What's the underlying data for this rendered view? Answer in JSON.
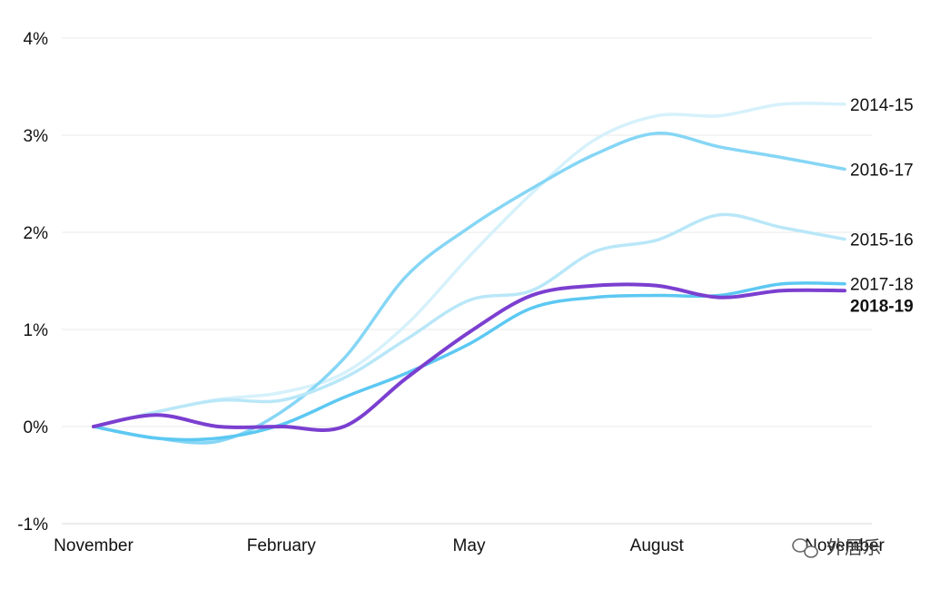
{
  "chart_data": {
    "type": "line",
    "ylim": [
      -1,
      4
    ],
    "y_ticks": [
      {
        "value": 4,
        "label": "4%"
      },
      {
        "value": 3,
        "label": "3%"
      },
      {
        "value": 2,
        "label": "2%"
      },
      {
        "value": 1,
        "label": "1%"
      },
      {
        "value": 0,
        "label": "0%"
      },
      {
        "value": -1,
        "label": "-1%"
      }
    ],
    "x_ticks": [
      {
        "value": 0,
        "label": "November"
      },
      {
        "value": 3,
        "label": "February"
      },
      {
        "value": 6,
        "label": "May"
      },
      {
        "value": 9,
        "label": "August"
      },
      {
        "value": 12,
        "label": "November"
      }
    ],
    "grid": true,
    "series": [
      {
        "name": "2014-15",
        "color": "#d6f1fb",
        "bold": false,
        "x": [
          0,
          1,
          2,
          3,
          4,
          5,
          6,
          7,
          8,
          9,
          10,
          11,
          12
        ],
        "values": [
          0,
          0.15,
          0.28,
          0.35,
          0.55,
          1.05,
          1.75,
          2.4,
          2.95,
          3.2,
          3.2,
          3.32,
          3.32
        ]
      },
      {
        "name": "2016-17",
        "color": "#86d6f5",
        "bold": false,
        "x": [
          0,
          1,
          2,
          3,
          4,
          5,
          6,
          7,
          8,
          9,
          10,
          11,
          12
        ],
        "values": [
          0,
          -0.12,
          -0.15,
          0.15,
          0.7,
          1.55,
          2.05,
          2.45,
          2.8,
          3.02,
          2.88,
          2.77,
          2.65
        ]
      },
      {
        "name": "2015-16",
        "color": "#b9e7f8",
        "bold": false,
        "x": [
          0,
          1,
          2,
          3,
          4,
          5,
          6,
          7,
          8,
          9,
          10,
          11,
          12
        ],
        "values": [
          0,
          0.15,
          0.27,
          0.27,
          0.5,
          0.9,
          1.3,
          1.4,
          1.8,
          1.92,
          2.18,
          2.05,
          1.93
        ]
      },
      {
        "name": "2017-18",
        "color": "#5cc8f2",
        "bold": false,
        "x": [
          0,
          1,
          2,
          3,
          4,
          5,
          6,
          7,
          8,
          9,
          10,
          11,
          12
        ],
        "values": [
          0,
          -0.12,
          -0.12,
          0.02,
          0.3,
          0.55,
          0.85,
          1.22,
          1.33,
          1.35,
          1.35,
          1.47,
          1.47
        ]
      },
      {
        "name": "2018-19",
        "color": "#7b3fd0",
        "bold": true,
        "x": [
          0,
          1,
          2,
          3,
          4,
          5,
          6,
          7,
          8,
          9,
          10,
          11,
          12
        ],
        "values": [
          0,
          0.12,
          0.0,
          0.0,
          0.0,
          0.5,
          0.97,
          1.35,
          1.45,
          1.45,
          1.33,
          1.4,
          1.4
        ]
      }
    ]
  },
  "watermark": {
    "text": "外居乐",
    "icon": "wechat-icon"
  }
}
